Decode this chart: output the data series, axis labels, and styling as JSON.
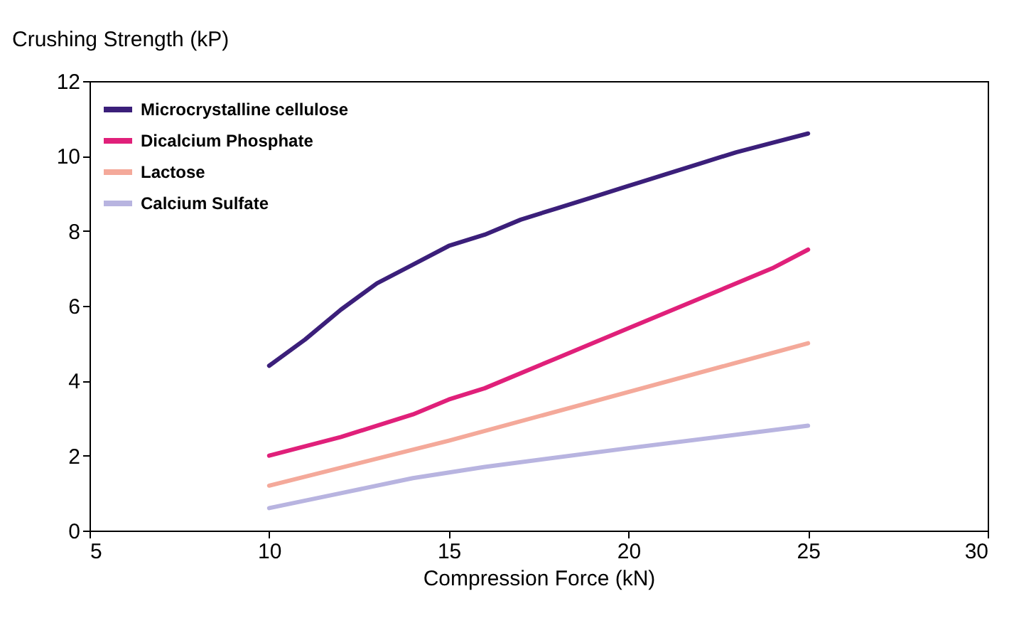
{
  "chart_data": {
    "type": "line",
    "xlabel": "Compression Force (kN)",
    "ylabel": "Crushing Strength (kP)",
    "xlim": [
      5,
      30
    ],
    "xticks": [
      5,
      10,
      15,
      20,
      25,
      30
    ],
    "ylim": [
      0,
      12
    ],
    "yticks": [
      0,
      2,
      4,
      6,
      8,
      10,
      12
    ],
    "grid": false,
    "legend": "top left",
    "marker": "none",
    "line_style": "solid",
    "series": [
      {
        "name": "Microcrystalline cellulose",
        "color": "#3b1f7a",
        "x": [
          10,
          11,
          12,
          13,
          14,
          15,
          16,
          17,
          18,
          19,
          20,
          21,
          22,
          23,
          24,
          25
        ],
        "values": [
          4.4,
          5.1,
          5.9,
          6.6,
          7.1,
          7.6,
          7.9,
          8.3,
          8.6,
          8.9,
          9.2,
          9.5,
          9.8,
          10.1,
          10.35,
          10.6
        ]
      },
      {
        "name": "Dicalcium Phosphate",
        "color": "#e0207a",
        "x": [
          10,
          12,
          14,
          15,
          16,
          18,
          20,
          22,
          24,
          25
        ],
        "values": [
          2.0,
          2.5,
          3.1,
          3.5,
          3.8,
          4.6,
          5.4,
          6.2,
          7.0,
          7.5
        ]
      },
      {
        "name": "Lactose",
        "color": "#f4a99a",
        "x": [
          10,
          15,
          20,
          25
        ],
        "values": [
          1.2,
          2.4,
          3.7,
          5.0
        ]
      },
      {
        "name": "Calcium Sulfate",
        "color": "#b8b4e0",
        "x": [
          10,
          12,
          14,
          16,
          20,
          25
        ],
        "values": [
          0.6,
          1.0,
          1.4,
          1.7,
          2.2,
          2.8
        ]
      }
    ]
  }
}
